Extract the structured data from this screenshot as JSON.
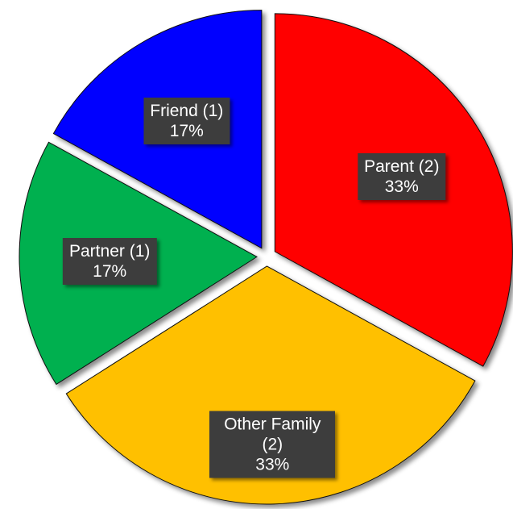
{
  "chart_data": {
    "type": "pie",
    "categories": [
      "Parent (2)",
      "Other Family (2)",
      "Partner (1)",
      "Friend (1)"
    ],
    "values": [
      33,
      33,
      17,
      17
    ],
    "value_labels": [
      "33%",
      "33%",
      "17%",
      "17%"
    ],
    "colors": [
      "#ff0000",
      "#ffc000",
      "#00b050",
      "#0000ff"
    ]
  }
}
